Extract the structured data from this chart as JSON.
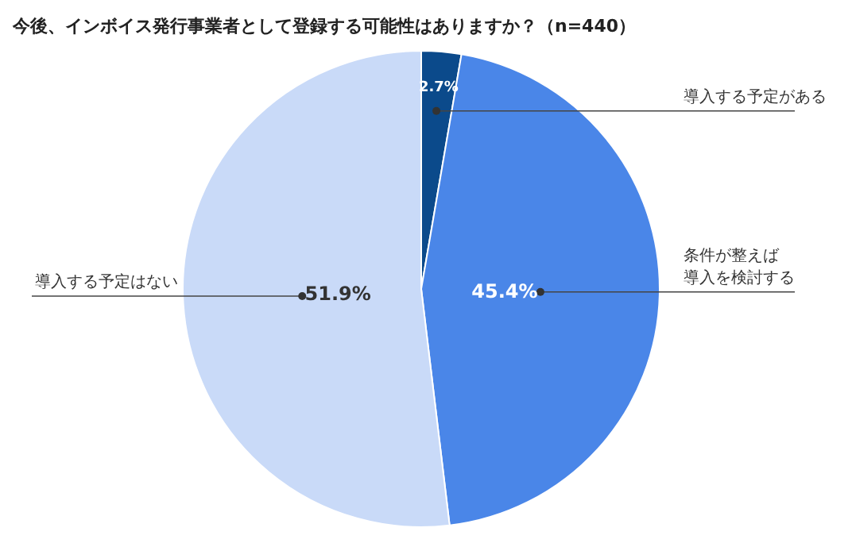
{
  "chart_data": {
    "type": "pie",
    "title": "今後、インボイス発行事業者として登録する可能性はありますか？（n=440）",
    "categories": [
      "導入する予定がある",
      "条件が整えば導入を検討する",
      "導入する予定はない"
    ],
    "values": [
      2.7,
      45.4,
      51.9
    ],
    "colors": [
      "#0b4a8b",
      "#4a86e8",
      "#c9daf8"
    ],
    "value_labels": [
      "2.7%",
      "45.4%",
      "51.9%"
    ]
  }
}
